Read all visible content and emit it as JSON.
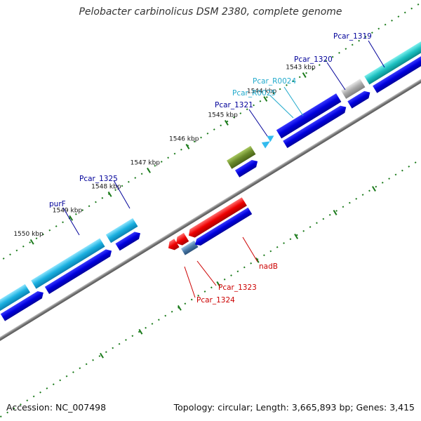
{
  "title": "Pelobacter carbinolicus DSM 2380, complete genome",
  "footer": {
    "accession": "Accession: NC_007498",
    "summary": "Topology: circular; Length: 3,665,893 bp; Genes: 3,415"
  },
  "colors": {
    "backbone": "#777777",
    "tick_dots": "#1a7a1a",
    "cds_forward": "#0000dd",
    "cds_reverse": "#0000dd",
    "cds_cyan": "#1ab0e0",
    "cds_teal": "#1cc0c0",
    "cds_gray": "#aaaaaa",
    "cds_olive": "#6a8a2a",
    "cds_red": "#ee0000",
    "cds_steel": "#4a7aa8",
    "label_blue": "#000099",
    "label_cyan": "#22aacc",
    "label_red": "#cc0000"
  },
  "ticks": [
    "1543 kbp",
    "1544 kbp",
    "1545 kbp",
    "1546 kbp",
    "1547 kbp",
    "1548 kbp",
    "1549 kbp",
    "1550 kbp"
  ],
  "genes": [
    {
      "name": "Pcar_1319",
      "color": "label_blue"
    },
    {
      "name": "Pcar_1320",
      "color": "label_blue"
    },
    {
      "name": "Pcar_R0024",
      "color": "label_cyan"
    },
    {
      "name": "Pcar_R0025",
      "color": "label_cyan"
    },
    {
      "name": "Pcar_1321",
      "color": "label_blue"
    },
    {
      "name": "Pcar_1325",
      "color": "label_blue"
    },
    {
      "name": "purF",
      "color": "label_blue"
    },
    {
      "name": "nadB",
      "color": "label_red"
    },
    {
      "name": "Pcar_1323",
      "color": "label_red"
    },
    {
      "name": "Pcar_1324",
      "color": "label_red"
    }
  ]
}
